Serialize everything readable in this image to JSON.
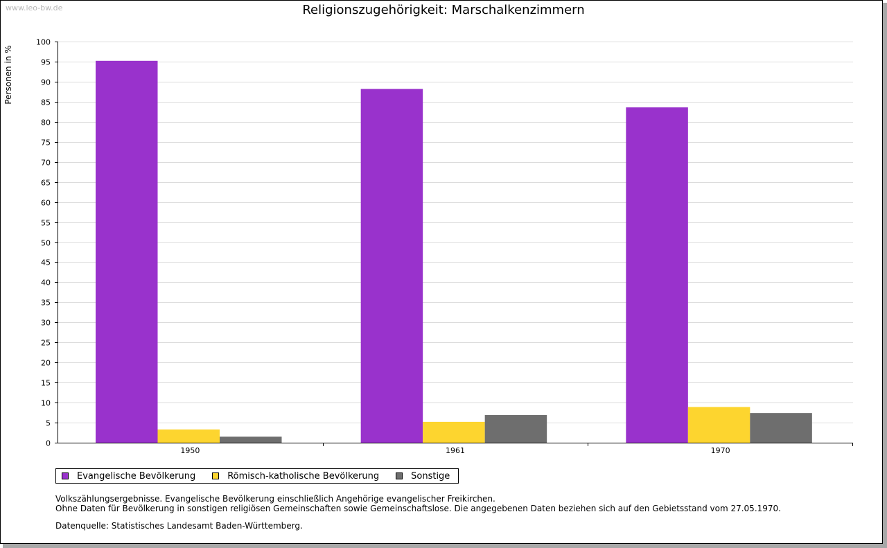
{
  "watermark": "www.leo-bw.de",
  "chart_data": {
    "type": "bar",
    "title": "Religionszugehörigkeit: Marschalkenzimmern",
    "xlabel": "",
    "ylabel": "Personen in %",
    "ylim": [
      0,
      100
    ],
    "ytick_step": 5,
    "grid": true,
    "categories": [
      "1950",
      "1961",
      "1970"
    ],
    "series": [
      {
        "name": "Evangelische Bevölkerung",
        "color": "#9932cc",
        "values": [
          95.2,
          88.2,
          83.6
        ]
      },
      {
        "name": "Römisch-katholische Bevölkerung",
        "color": "#fdd52f",
        "values": [
          3.3,
          5.2,
          8.9
        ]
      },
      {
        "name": "Sonstige",
        "color": "#6e6e6e",
        "values": [
          1.5,
          6.9,
          7.4
        ]
      }
    ],
    "legend_position": "bottom-left"
  },
  "notes": [
    "Volkszählungsergebnisse. Evangelische Bevölkerung einschließlich Angehörige evangelischer Freikirchen.",
    "Ohne Daten für Bevölkerung in sonstigen religiösen Gemeinschaften sowie Gemeinschaftslose. Die angegebenen Daten beziehen sich auf den Gebietsstand vom 27.05.1970."
  ],
  "source": "Datenquelle: Statistisches Landesamt Baden-Württemberg."
}
